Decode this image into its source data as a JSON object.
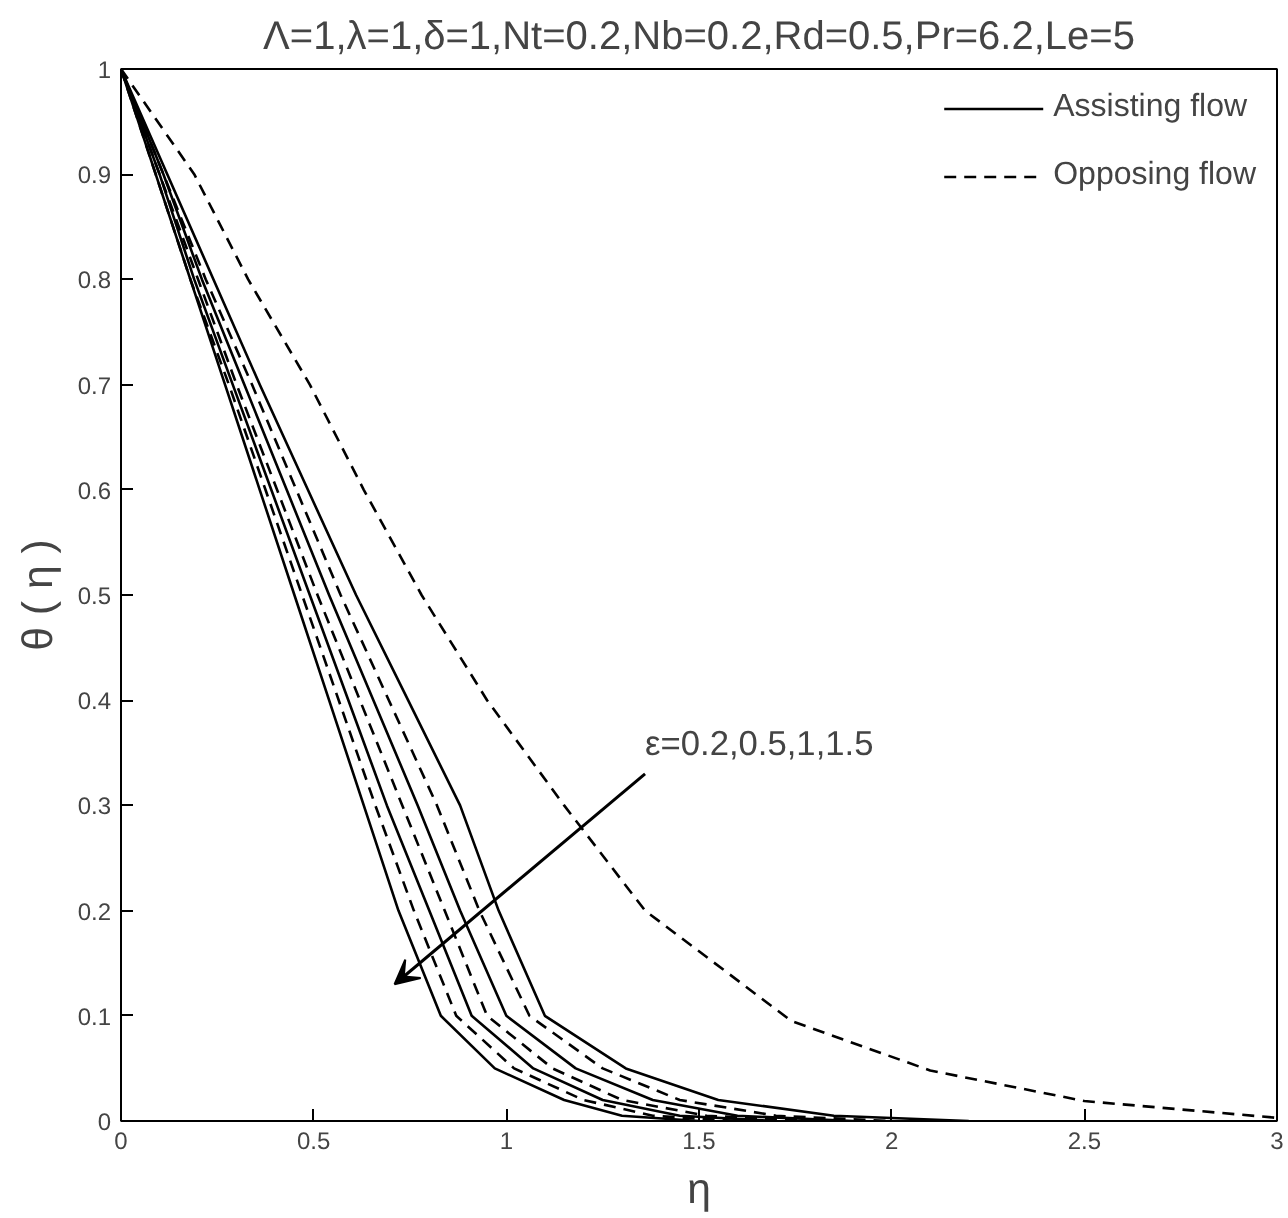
{
  "chart_data": {
    "type": "line",
    "title": "Λ=1,λ=1,δ=1,Nt=0.2,Nb=0.2,Rd=0.5,Pr=6.2,Le=5",
    "xlabel": "η",
    "ylabel": "θ ( η )",
    "xlim": [
      0,
      3
    ],
    "ylim": [
      0,
      1
    ],
    "xticks": [
      0,
      0.5,
      1,
      1.5,
      2,
      2.5,
      3
    ],
    "yticks": [
      0,
      0.1,
      0.2,
      0.3,
      0.4,
      0.5,
      0.6,
      0.7,
      0.8,
      0.9,
      1
    ],
    "grid": false,
    "legend": "top right",
    "marker": "none",
    "annotations": [
      "ε=0.2,0.5,1,1.5"
    ],
    "series": [
      {
        "name": "Assisting flow",
        "color": "#000000",
        "line_style": "solid",
        "x": [
          0,
          0.09,
          0.18,
          0.27,
          0.36,
          0.45,
          0.54,
          0.63,
          0.72,
          0.83,
          0.97,
          1.15,
          1.3,
          1.5
        ],
        "values": [
          1,
          0.9,
          0.8,
          0.7,
          0.6,
          0.5,
          0.4,
          0.3,
          0.2,
          0.1,
          0.05,
          0.02,
          0.005,
          0
        ]
      },
      {
        "name": "Opposing flow",
        "color": "#000000",
        "line_style": "dashed",
        "x": [
          0,
          0.09,
          0.18,
          0.28,
          0.375,
          0.47,
          0.565,
          0.66,
          0.76,
          0.87,
          1.02,
          1.2,
          1.38,
          1.6
        ],
        "values": [
          1,
          0.9,
          0.8,
          0.7,
          0.6,
          0.5,
          0.4,
          0.3,
          0.2,
          0.1,
          0.05,
          0.02,
          0.005,
          0
        ]
      },
      {
        "color": "#000000",
        "line_style": "solid",
        "x": [
          0,
          0.1,
          0.19,
          0.29,
          0.39,
          0.49,
          0.59,
          0.69,
          0.8,
          0.91,
          1.07,
          1.25,
          1.45,
          1.7
        ],
        "values": [
          1,
          0.9,
          0.8,
          0.7,
          0.6,
          0.5,
          0.4,
          0.3,
          0.2,
          0.1,
          0.05,
          0.02,
          0.005,
          0
        ]
      },
      {
        "color": "#000000",
        "line_style": "dashed",
        "x": [
          0,
          0.1,
          0.2,
          0.3,
          0.405,
          0.51,
          0.62,
          0.73,
          0.84,
          0.95,
          1.12,
          1.3,
          1.52,
          1.8
        ],
        "values": [
          1,
          0.9,
          0.8,
          0.7,
          0.6,
          0.5,
          0.4,
          0.3,
          0.2,
          0.1,
          0.05,
          0.02,
          0.005,
          0
        ]
      },
      {
        "color": "#000000",
        "line_style": "solid",
        "x": [
          0,
          0.11,
          0.21,
          0.32,
          0.43,
          0.54,
          0.655,
          0.77,
          0.88,
          1.0,
          1.18,
          1.38,
          1.6,
          1.9
        ],
        "values": [
          1,
          0.9,
          0.8,
          0.7,
          0.6,
          0.5,
          0.4,
          0.3,
          0.2,
          0.1,
          0.05,
          0.02,
          0.005,
          0
        ]
      },
      {
        "color": "#000000",
        "line_style": "dashed",
        "x": [
          0,
          0.11,
          0.22,
          0.34,
          0.455,
          0.57,
          0.695,
          0.82,
          0.93,
          1.06,
          1.25,
          1.45,
          1.7,
          2.0
        ],
        "values": [
          1,
          0.9,
          0.8,
          0.7,
          0.6,
          0.5,
          0.4,
          0.3,
          0.2,
          0.1,
          0.05,
          0.02,
          0.005,
          0
        ]
      },
      {
        "color": "#000000",
        "line_style": "solid",
        "x": [
          0,
          0.12,
          0.24,
          0.36,
          0.485,
          0.61,
          0.745,
          0.88,
          0.98,
          1.1,
          1.31,
          1.55,
          1.85,
          2.2
        ],
        "values": [
          1,
          0.9,
          0.8,
          0.7,
          0.6,
          0.5,
          0.4,
          0.3,
          0.2,
          0.1,
          0.05,
          0.02,
          0.005,
          0
        ]
      },
      {
        "color": "#000000",
        "line_style": "dashed",
        "x": [
          0,
          0.19,
          0.33,
          0.49,
          0.63,
          0.78,
          0.95,
          1.15,
          1.36,
          1.74,
          2.1,
          2.5,
          3.0
        ],
        "values": [
          1,
          0.9,
          0.8,
          0.7,
          0.6,
          0.5,
          0.4,
          0.3,
          0.2,
          0.095,
          0.048,
          0.019,
          0.003
        ]
      }
    ]
  }
}
